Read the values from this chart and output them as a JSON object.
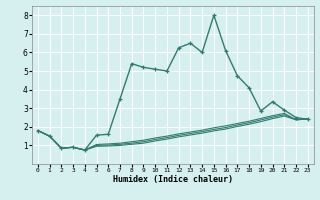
{
  "xlabel": "Humidex (Indice chaleur)",
  "ylabel": "",
  "bg_color": "#d6efef",
  "grid_color": "#ffffff",
  "line_color": "#2e7d6e",
  "xlim": [
    -0.5,
    23.5
  ],
  "ylim": [
    0,
    8.5
  ],
  "xticks": [
    0,
    1,
    2,
    3,
    4,
    5,
    6,
    7,
    8,
    9,
    10,
    11,
    12,
    13,
    14,
    15,
    16,
    17,
    18,
    19,
    20,
    21,
    22,
    23
  ],
  "yticks": [
    1,
    2,
    3,
    4,
    5,
    6,
    7,
    8
  ],
  "series": [
    {
      "x": [
        0,
        1,
        2,
        3,
        4,
        5,
        6,
        7,
        8,
        9,
        10,
        11,
        12,
        13,
        14,
        15,
        16,
        17,
        18,
        19,
        20,
        21,
        22,
        23
      ],
      "y": [
        1.8,
        1.5,
        0.85,
        0.9,
        0.75,
        1.55,
        1.6,
        3.5,
        5.4,
        5.2,
        5.1,
        5.0,
        6.25,
        6.5,
        6.0,
        8.0,
        6.1,
        4.75,
        4.1,
        2.85,
        3.35,
        2.9,
        2.5,
        2.4
      ]
    },
    {
      "x": [
        0,
        1,
        2,
        3,
        4,
        5,
        6,
        7,
        8,
        9,
        10,
        11,
        12,
        13,
        14,
        15,
        16,
        17,
        18,
        19,
        20,
        21,
        22,
        23
      ],
      "y": [
        1.8,
        1.5,
        0.85,
        0.9,
        0.75,
        1.05,
        1.08,
        1.12,
        1.2,
        1.28,
        1.4,
        1.5,
        1.62,
        1.72,
        1.82,
        1.95,
        2.05,
        2.18,
        2.3,
        2.45,
        2.6,
        2.72,
        2.38,
        2.42
      ]
    },
    {
      "x": [
        0,
        1,
        2,
        3,
        4,
        5,
        6,
        7,
        8,
        9,
        10,
        11,
        12,
        13,
        14,
        15,
        16,
        17,
        18,
        19,
        20,
        21,
        22,
        23
      ],
      "y": [
        1.8,
        1.5,
        0.85,
        0.9,
        0.75,
        1.0,
        1.02,
        1.06,
        1.12,
        1.2,
        1.32,
        1.42,
        1.54,
        1.64,
        1.74,
        1.86,
        1.96,
        2.1,
        2.22,
        2.37,
        2.52,
        2.65,
        2.38,
        2.42
      ]
    },
    {
      "x": [
        0,
        1,
        2,
        3,
        4,
        5,
        6,
        7,
        8,
        9,
        10,
        11,
        12,
        13,
        14,
        15,
        16,
        17,
        18,
        19,
        20,
        21,
        22,
        23
      ],
      "y": [
        1.8,
        1.5,
        0.85,
        0.9,
        0.75,
        0.95,
        0.97,
        1.0,
        1.06,
        1.12,
        1.24,
        1.34,
        1.46,
        1.56,
        1.66,
        1.78,
        1.88,
        2.02,
        2.14,
        2.28,
        2.44,
        2.58,
        2.38,
        2.42
      ]
    }
  ]
}
